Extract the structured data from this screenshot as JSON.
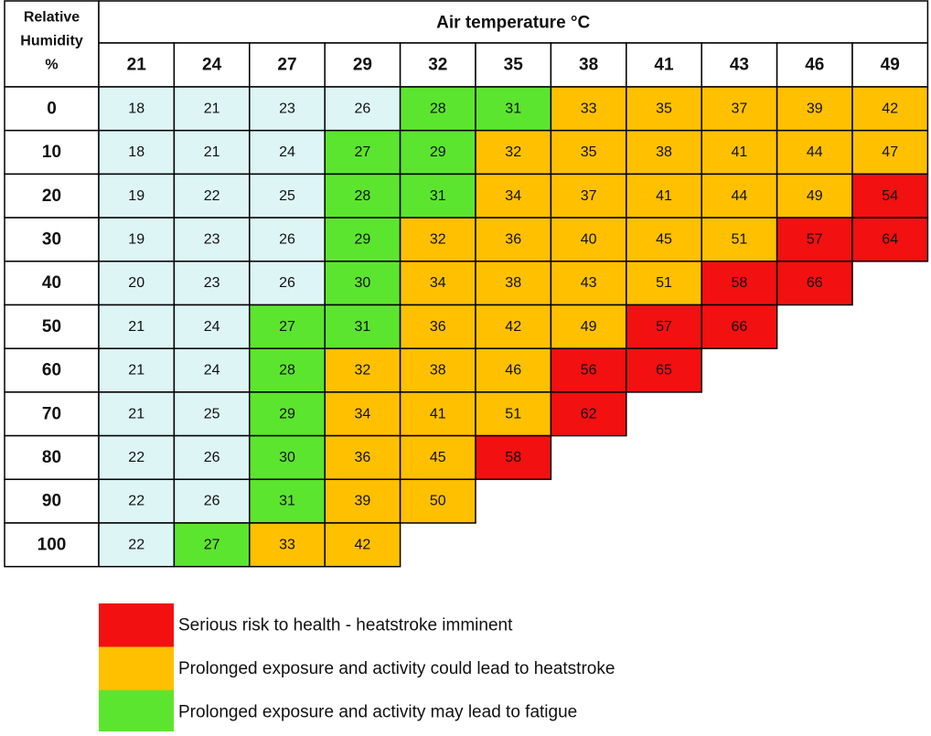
{
  "table": {
    "corner_header": [
      "Relative",
      "Humidity",
      "%"
    ],
    "column_group_header": "Air temperature °C",
    "columns": [
      21,
      24,
      27,
      29,
      32,
      35,
      38,
      41,
      43,
      46,
      49
    ],
    "rows": [
      {
        "humidity": 0,
        "values": [
          18,
          21,
          23,
          26,
          28,
          31,
          33,
          35,
          37,
          39,
          42
        ],
        "colors": [
          "#def5f5",
          "#def5f5",
          "#def5f5",
          "#def5f5",
          "#5ce52e",
          "#5ce52e",
          "#ffc000",
          "#ffc000",
          "#ffc000",
          "#ffc000",
          "#ffc000"
        ]
      },
      {
        "humidity": 10,
        "values": [
          18,
          21,
          24,
          27,
          29,
          32,
          35,
          38,
          41,
          44,
          47
        ],
        "colors": [
          "#def5f5",
          "#def5f5",
          "#def5f5",
          "#5ce52e",
          "#5ce52e",
          "#ffc000",
          "#ffc000",
          "#ffc000",
          "#ffc000",
          "#ffc000",
          "#ffc000"
        ]
      },
      {
        "humidity": 20,
        "values": [
          19,
          22,
          25,
          28,
          31,
          34,
          37,
          41,
          44,
          49,
          54
        ],
        "colors": [
          "#def5f5",
          "#def5f5",
          "#def5f5",
          "#5ce52e",
          "#5ce52e",
          "#ffc000",
          "#ffc000",
          "#ffc000",
          "#ffc000",
          "#ffc000",
          "#f21010"
        ]
      },
      {
        "humidity": 30,
        "values": [
          19,
          23,
          26,
          29,
          32,
          36,
          40,
          45,
          51,
          57,
          64
        ],
        "colors": [
          "#def5f5",
          "#def5f5",
          "#def5f5",
          "#5ce52e",
          "#ffc000",
          "#ffc000",
          "#ffc000",
          "#ffc000",
          "#ffc000",
          "#f21010",
          "#f21010"
        ]
      },
      {
        "humidity": 40,
        "values": [
          20,
          23,
          26,
          30,
          34,
          38,
          43,
          51,
          58,
          66
        ],
        "colors": [
          "#def5f5",
          "#def5f5",
          "#def5f5",
          "#5ce52e",
          "#ffc000",
          "#ffc000",
          "#ffc000",
          "#ffc000",
          "#f21010",
          "#f21010"
        ]
      },
      {
        "humidity": 50,
        "values": [
          21,
          24,
          27,
          31,
          36,
          42,
          49,
          57,
          66
        ],
        "colors": [
          "#def5f5",
          "#def5f5",
          "#5ce52e",
          "#5ce52e",
          "#ffc000",
          "#ffc000",
          "#ffc000",
          "#f21010",
          "#f21010"
        ]
      },
      {
        "humidity": 60,
        "values": [
          21,
          24,
          28,
          32,
          38,
          46,
          56,
          65
        ],
        "colors": [
          "#def5f5",
          "#def5f5",
          "#5ce52e",
          "#ffc000",
          "#ffc000",
          "#ffc000",
          "#f21010",
          "#f21010"
        ]
      },
      {
        "humidity": 70,
        "values": [
          21,
          25,
          29,
          34,
          41,
          51,
          62
        ],
        "colors": [
          "#def5f5",
          "#def5f5",
          "#5ce52e",
          "#ffc000",
          "#ffc000",
          "#ffc000",
          "#f21010"
        ]
      },
      {
        "humidity": 80,
        "values": [
          22,
          26,
          30,
          36,
          45,
          58
        ],
        "colors": [
          "#def5f5",
          "#def5f5",
          "#5ce52e",
          "#ffc000",
          "#ffc000",
          "#f21010"
        ]
      },
      {
        "humidity": 90,
        "values": [
          22,
          26,
          31,
          39,
          50
        ],
        "colors": [
          "#def5f5",
          "#def5f5",
          "#5ce52e",
          "#ffc000",
          "#ffc000"
        ]
      },
      {
        "humidity": 100,
        "values": [
          22,
          27,
          33,
          42
        ],
        "colors": [
          "#def5f5",
          "#5ce52e",
          "#ffc000",
          "#ffc000"
        ]
      }
    ]
  },
  "legend": [
    {
      "label": "Serious risk to health - heatstroke imminent",
      "color": "#f21010"
    },
    {
      "label": "Prolonged exposure and activity could lead to heatstroke",
      "color": "#ffc000"
    },
    {
      "label": "Prolonged exposure and activity may lead to fatigue",
      "color": "#5ce52e"
    }
  ]
}
